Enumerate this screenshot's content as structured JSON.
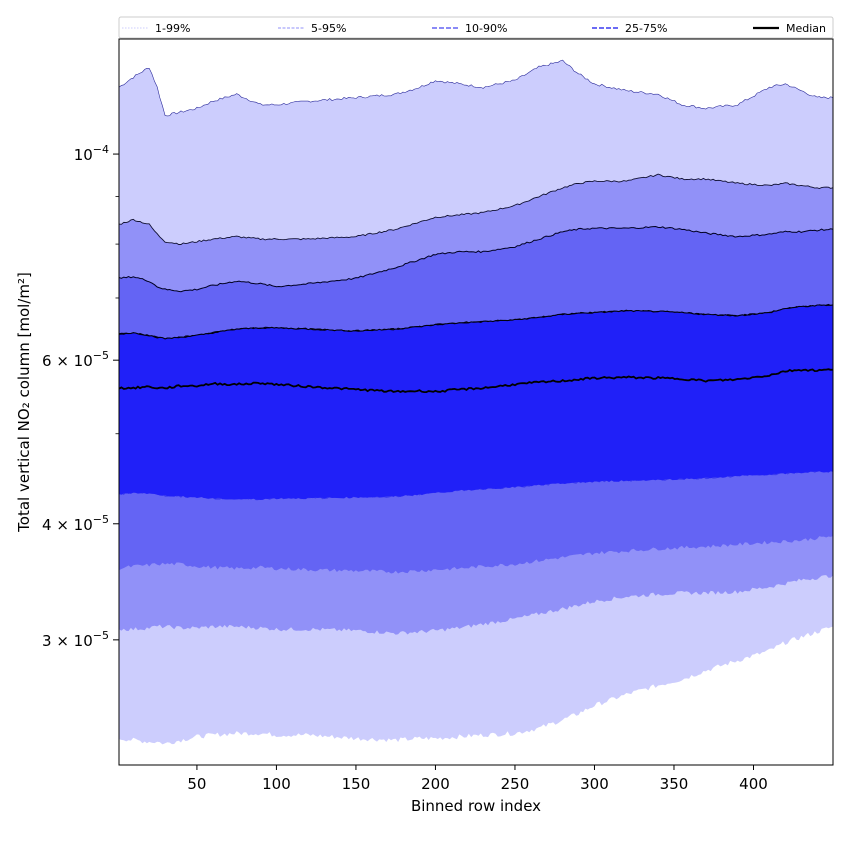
{
  "chart_data": {
    "type": "area",
    "xlabel": "Binned row index",
    "ylabel": "Total vertical NO₂ column [mol/m²]",
    "xlim": [
      1,
      450
    ],
    "ylim": [
      2.2e-05,
      0.000133
    ],
    "y_scale": "log",
    "grid": false,
    "legend_position": "top",
    "x_ticks": [
      50,
      100,
      150,
      200,
      250,
      300,
      350,
      400
    ],
    "y_ticks": [
      {
        "value": 0.0001,
        "mantissa": "10",
        "exponent": "−4",
        "style": "power"
      },
      {
        "value": 6e-05,
        "mantissa": "6 × 10",
        "exponent": "−5",
        "style": "sci"
      },
      {
        "value": 4e-05,
        "mantissa": "4 × 10",
        "exponent": "−5",
        "style": "sci"
      },
      {
        "value": 3e-05,
        "mantissa": "3 × 10",
        "exponent": "−5",
        "style": "sci"
      }
    ],
    "legend": [
      {
        "label": "1-99%",
        "color": "#cccdfd",
        "style": "dotted-thin"
      },
      {
        "label": "5-95%",
        "color": "#9191f8",
        "style": "dashed-thin"
      },
      {
        "label": "10-90%",
        "color": "#6464f4",
        "style": "dashed"
      },
      {
        "label": "25-75%",
        "color": "#3a3af0",
        "style": "dashed"
      },
      {
        "label": "Median",
        "color": "#000000",
        "style": "solid"
      }
    ],
    "x": [
      1,
      10,
      20,
      25,
      30,
      40,
      50,
      60,
      75,
      90,
      100,
      120,
      150,
      175,
      190,
      200,
      215,
      230,
      250,
      265,
      280,
      290,
      300,
      320,
      340,
      355,
      370,
      390,
      410,
      420,
      430,
      440,
      450
    ],
    "series": [
      {
        "name": "1-99%",
        "color": "#cccdfd",
        "lower": [
          2.35e-05,
          2.34e-05,
          2.33e-05,
          2.33e-05,
          2.32e-05,
          2.34e-05,
          2.36e-05,
          2.37e-05,
          2.38e-05,
          2.38e-05,
          2.37e-05,
          2.37e-05,
          2.35e-05,
          2.34e-05,
          2.35e-05,
          2.35e-05,
          2.36e-05,
          2.37e-05,
          2.38e-05,
          2.41e-05,
          2.46e-05,
          2.5e-05,
          2.55e-05,
          2.62e-05,
          2.68e-05,
          2.72e-05,
          2.78e-05,
          2.85e-05,
          2.92e-05,
          2.98e-05,
          3.02e-05,
          3.06e-05,
          3.1e-05
        ],
        "upper": [
          0.000118,
          0.000121,
          0.000124,
          0.000118,
          0.00011,
          0.000111,
          0.000112,
          0.000114,
          0.000116,
          0.000113,
          0.000113,
          0.000114,
          0.000115,
          0.000116,
          0.000118,
          0.00012,
          0.000119,
          0.000118,
          0.00012,
          0.000124,
          0.000126,
          0.000122,
          0.000119,
          0.000117,
          0.000116,
          0.000113,
          0.000112,
          0.000113,
          0.000118,
          0.000119,
          0.000117,
          0.000115,
          0.000115
        ]
      },
      {
        "name": "5-95%",
        "color": "#9191f8",
        "lower": [
          3.08e-05,
          3.08e-05,
          3.09e-05,
          3.1e-05,
          3.1e-05,
          3.09e-05,
          3.09e-05,
          3.1e-05,
          3.1e-05,
          3.09e-05,
          3.08e-05,
          3.08e-05,
          3.07e-05,
          3.05e-05,
          3.06e-05,
          3.07e-05,
          3.09e-05,
          3.12e-05,
          3.16e-05,
          3.2e-05,
          3.24e-05,
          3.27e-05,
          3.3e-05,
          3.34e-05,
          3.36e-05,
          3.37e-05,
          3.37e-05,
          3.38e-05,
          3.42e-05,
          3.45e-05,
          3.48e-05,
          3.5e-05,
          3.52e-05
        ],
        "upper": [
          8.4e-05,
          8.5e-05,
          8.4e-05,
          8.2e-05,
          8.05e-05,
          8e-05,
          8.05e-05,
          8.1e-05,
          8.15e-05,
          8.1e-05,
          8.1e-05,
          8.1e-05,
          8.15e-05,
          8.3e-05,
          8.45e-05,
          8.55e-05,
          8.6e-05,
          8.65e-05,
          8.8e-05,
          9e-05,
          9.2e-05,
          9.3e-05,
          9.35e-05,
          9.35e-05,
          9.5e-05,
          9.4e-05,
          9.4e-05,
          9.3e-05,
          9.25e-05,
          9.3e-05,
          9.25e-05,
          9.2e-05,
          9.2e-05
        ]
      },
      {
        "name": "10-90%",
        "color": "#6464f4",
        "lower": [
          3.58e-05,
          3.6e-05,
          3.61e-05,
          3.62e-05,
          3.62e-05,
          3.62e-05,
          3.6e-05,
          3.59e-05,
          3.58e-05,
          3.59e-05,
          3.58e-05,
          3.57e-05,
          3.56e-05,
          3.55e-05,
          3.56e-05,
          3.57e-05,
          3.58e-05,
          3.6e-05,
          3.62e-05,
          3.65e-05,
          3.68e-05,
          3.7e-05,
          3.72e-05,
          3.74e-05,
          3.76e-05,
          3.77e-05,
          3.78e-05,
          3.8e-05,
          3.82e-05,
          3.83e-05,
          3.84e-05,
          3.86e-05,
          3.88e-05
        ],
        "upper": [
          7.35e-05,
          7.38e-05,
          7.3e-05,
          7.2e-05,
          7.15e-05,
          7.12e-05,
          7.15e-05,
          7.22e-05,
          7.3e-05,
          7.25e-05,
          7.2e-05,
          7.25e-05,
          7.35e-05,
          7.55e-05,
          7.7e-05,
          7.8e-05,
          7.85e-05,
          7.85e-05,
          7.95e-05,
          8.1e-05,
          8.25e-05,
          8.3e-05,
          8.32e-05,
          8.32e-05,
          8.35e-05,
          8.3e-05,
          8.22e-05,
          8.15e-05,
          8.2e-05,
          8.25e-05,
          8.25e-05,
          8.28e-05,
          8.3e-05
        ],
        "lower_jitter": true
      },
      {
        "name": "25-75%",
        "color": "#3a3af0",
        "lower": [
          4.3e-05,
          4.32e-05,
          4.31e-05,
          4.3e-05,
          4.29e-05,
          4.28e-05,
          4.27e-05,
          4.26e-05,
          4.25e-05,
          4.25e-05,
          4.26e-05,
          4.26e-05,
          4.27e-05,
          4.28e-05,
          4.3e-05,
          4.32e-05,
          4.34e-05,
          4.36e-05,
          4.38e-05,
          4.4e-05,
          4.42e-05,
          4.43e-05,
          4.44e-05,
          4.45e-05,
          4.46e-05,
          4.47e-05,
          4.48e-05,
          4.5e-05,
          4.52e-05,
          4.53e-05,
          4.54e-05,
          4.55e-05,
          4.55e-05
        ],
        "upper": [
          6.4e-05,
          6.42e-05,
          6.38e-05,
          6.35e-05,
          6.33e-05,
          6.35e-05,
          6.38e-05,
          6.42e-05,
          6.48e-05,
          6.5e-05,
          6.5e-05,
          6.48e-05,
          6.45e-05,
          6.48e-05,
          6.52e-05,
          6.55e-05,
          6.58e-05,
          6.6e-05,
          6.63e-05,
          6.67e-05,
          6.72e-05,
          6.74e-05,
          6.75e-05,
          6.78e-05,
          6.77e-05,
          6.75e-05,
          6.72e-05,
          6.7e-05,
          6.75e-05,
          6.82e-05,
          6.85e-05,
          6.87e-05,
          6.88e-05
        ]
      },
      {
        "name": "Median",
        "color": "#000000",
        "values": [
          5.6e-05,
          5.6e-05,
          5.62e-05,
          5.6e-05,
          5.6e-05,
          5.63e-05,
          5.63e-05,
          5.66e-05,
          5.65e-05,
          5.67e-05,
          5.65e-05,
          5.62e-05,
          5.58e-05,
          5.55e-05,
          5.56e-05,
          5.55e-05,
          5.58e-05,
          5.6e-05,
          5.65e-05,
          5.68e-05,
          5.7e-05,
          5.72e-05,
          5.74e-05,
          5.75e-05,
          5.74e-05,
          5.73e-05,
          5.7e-05,
          5.72e-05,
          5.78e-05,
          5.84e-05,
          5.86e-05,
          5.85e-05,
          5.86e-05
        ]
      }
    ],
    "core_color": "#2020f8"
  }
}
